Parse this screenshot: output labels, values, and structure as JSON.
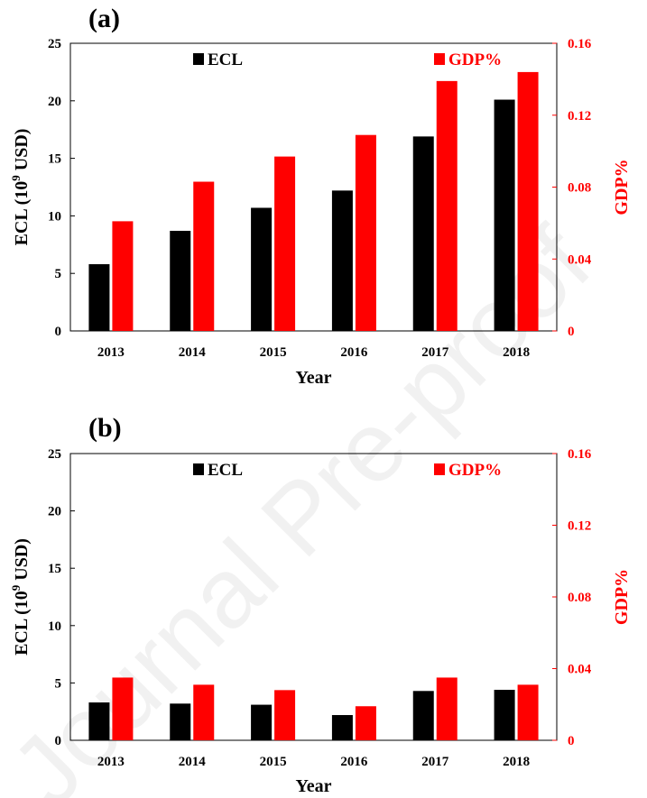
{
  "colors": {
    "ecl": "#000000",
    "gdp": "#ff0000",
    "axis": "#000000"
  },
  "watermark": "Journal Pre-proof",
  "chart_data": [
    {
      "type": "bar",
      "panel_label": "(a)",
      "categories": [
        "2013",
        "2014",
        "2015",
        "2016",
        "2017",
        "2018"
      ],
      "xlabel": "Year",
      "ylabel": "ECL (10",
      "ylabel_sup": "9",
      "ylabel_end": " USD)",
      "y2label": "GDP%",
      "ylim": [
        0,
        25
      ],
      "y2lim": [
        0,
        0.16
      ],
      "yticks": [
        "0",
        "5",
        "10",
        "15",
        "20",
        "25"
      ],
      "y2ticks": [
        "0",
        "0.04",
        "0.08",
        "0.12",
        "0.16"
      ],
      "legend_position": "top",
      "series": [
        {
          "name": "ECL",
          "axis": "left",
          "values": [
            5.8,
            8.7,
            10.7,
            12.2,
            16.9,
            20.1
          ]
        },
        {
          "name": "GDP%",
          "axis": "right",
          "values": [
            0.061,
            0.083,
            0.097,
            0.109,
            0.139,
            0.144
          ]
        }
      ]
    },
    {
      "type": "bar",
      "panel_label": "(b)",
      "categories": [
        "2013",
        "2014",
        "2015",
        "2016",
        "2017",
        "2018"
      ],
      "xlabel": "Year",
      "ylabel": "ECL (10",
      "ylabel_sup": "9",
      "ylabel_end": " USD)",
      "y2label": "GDP%",
      "ylim": [
        0,
        25
      ],
      "y2lim": [
        0,
        0.16
      ],
      "yticks": [
        "0",
        "5",
        "10",
        "15",
        "20",
        "25"
      ],
      "y2ticks": [
        "0",
        "0.04",
        "0.08",
        "0.12",
        "0.16"
      ],
      "legend_position": "top",
      "series": [
        {
          "name": "ECL",
          "axis": "left",
          "values": [
            3.3,
            3.2,
            3.1,
            2.2,
            4.3,
            4.4
          ]
        },
        {
          "name": "GDP%",
          "axis": "right",
          "values": [
            0.035,
            0.031,
            0.028,
            0.019,
            0.035,
            0.031
          ]
        }
      ]
    }
  ]
}
